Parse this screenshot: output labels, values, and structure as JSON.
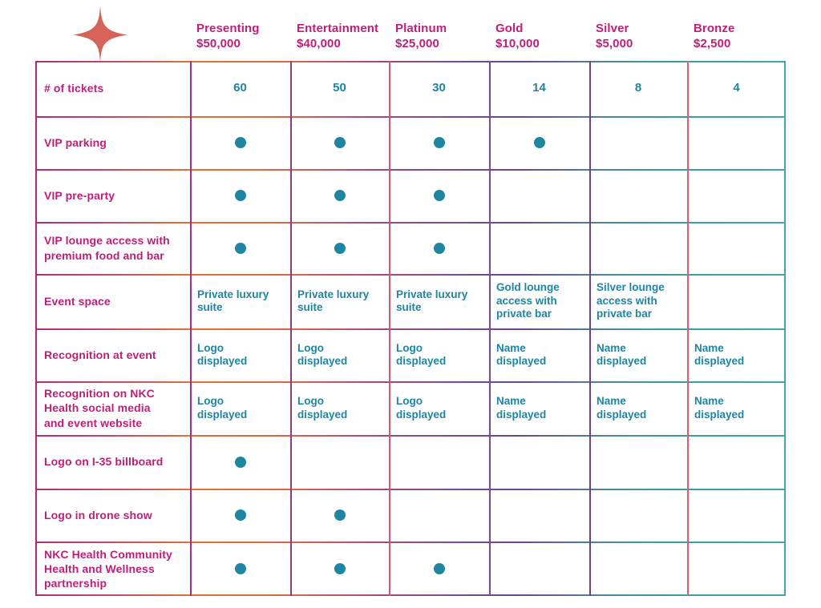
{
  "palette": {
    "magenta": "#bd1f7b",
    "teal": "#1e86a3",
    "coral": "#d6635a",
    "h_line_gradient": "linear-gradient(90deg,#b12a7c 0%,#c34a62 10%,#e0713c 21%,#d9654a 34%,#a04a7e 46%,#7b4a94 56%,#6f4590 64%,#4c86a0 76%,#3f9aa4 86%,#47a2ac 100%)",
    "v_line_colors": [
      "#ae2a7d",
      "#a23180",
      "#8d3a85",
      "#cc5a67",
      "#7a4a95",
      "#6f4487",
      "#da5f6e",
      "#47a2ac"
    ]
  },
  "icons": {
    "sparkle": "four-point-sparkle-star"
  },
  "columns": [
    {
      "name": "Presenting",
      "price": "$50,000"
    },
    {
      "name": "Entertainment",
      "price": "$40,000"
    },
    {
      "name": "Platinum",
      "price": "$25,000"
    },
    {
      "name": "Gold",
      "price": "$10,000"
    },
    {
      "name": "Silver",
      "price": "$5,000"
    },
    {
      "name": "Bronze",
      "price": "$2,500"
    }
  ],
  "rows": [
    {
      "label": "# of tickets",
      "align": "center",
      "cells": [
        "60",
        "50",
        "30",
        "14",
        "8",
        "4"
      ]
    },
    {
      "label": "VIP parking",
      "cells": [
        "●",
        "●",
        "●",
        "●",
        "",
        ""
      ]
    },
    {
      "label": "VIP pre-party",
      "cells": [
        "●",
        "●",
        "●",
        "",
        "",
        ""
      ]
    },
    {
      "label": "VIP lounge access with\npremium food and bar",
      "cells": [
        "●",
        "●",
        "●",
        "",
        "",
        ""
      ]
    },
    {
      "label": "Event space",
      "cells": [
        "Private luxury\nsuite",
        "Private luxury\nsuite",
        "Private luxury\nsuite",
        "Gold lounge\naccess with\nprivate bar",
        "Silver lounge\naccess with\nprivate bar",
        ""
      ]
    },
    {
      "label": "Recognition at event",
      "cells": [
        "Logo\ndisplayed",
        "Logo\ndisplayed",
        "Logo\ndisplayed",
        "Name\ndisplayed",
        "Name\ndisplayed",
        "Name\ndisplayed"
      ]
    },
    {
      "label": "Recognition on NKC\nHealth social media\nand event website",
      "cells": [
        "Logo\ndisplayed",
        "Logo\ndisplayed",
        "Logo\ndisplayed",
        "Name\ndisplayed",
        "Name\ndisplayed",
        "Name\ndisplayed"
      ]
    },
    {
      "label": "Logo on I-35 billboard",
      "cells": [
        "●",
        "",
        "",
        "",
        "",
        ""
      ]
    },
    {
      "label": "Logo in drone show",
      "cells": [
        "●",
        "●",
        "",
        "",
        "",
        ""
      ]
    },
    {
      "label": "NKC Health Community\nHealth and Wellness\npartnership",
      "cells": [
        "●",
        "●",
        "●",
        "",
        "",
        ""
      ]
    }
  ]
}
